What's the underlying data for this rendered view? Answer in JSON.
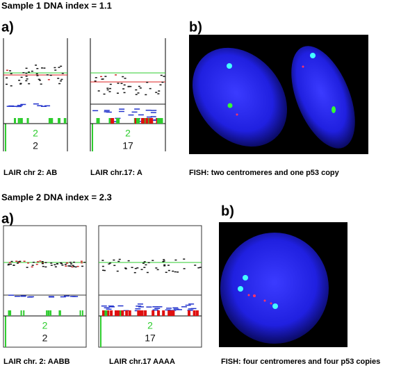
{
  "sample1": {
    "title": "Sample 1 DNA index = 1.1",
    "panel_a": {
      "label": "a)",
      "plots": [
        {
          "caption": "LAIR chr 2: AB",
          "label_green": "2",
          "label_black": "2"
        },
        {
          "caption": "LAIR chr.17: A",
          "label_green": "2",
          "label_black": "17"
        }
      ]
    },
    "panel_b": {
      "label": "b)",
      "caption": "FISH: two centromeres and one p53 copy"
    }
  },
  "sample2": {
    "title": "Sample 2 DNA index = 2.3",
    "panel_a": {
      "label": "a)",
      "plots": [
        {
          "caption": "LAIR chr. 2: AABB",
          "label_green": "2",
          "label_black": "2"
        },
        {
          "caption": "LAIR chr.17 AAAA",
          "label_green": "2",
          "label_black": "17"
        }
      ]
    },
    "panel_b": {
      "label": "b)",
      "caption": "FISH: four centromeres and four p53 copies"
    }
  }
}
